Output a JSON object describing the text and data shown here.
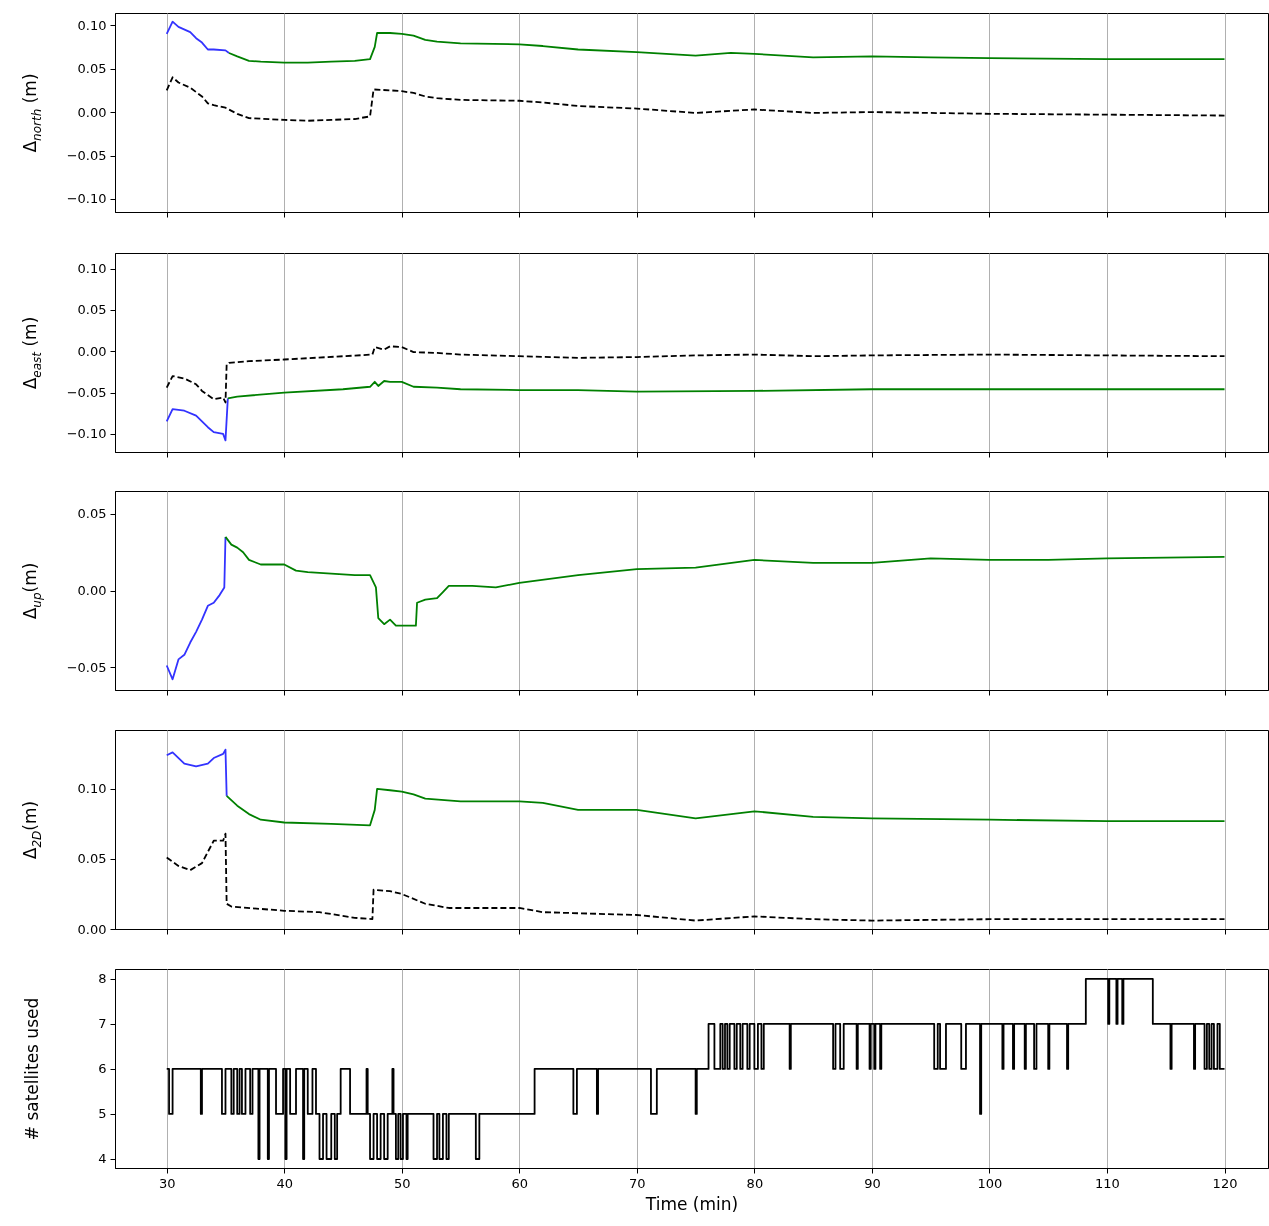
{
  "chart_data": [
    {
      "type": "line",
      "ylabel": "Δ$_{north}$ (m)",
      "xlim": [
        25.6,
        123.7
      ],
      "xticks": [
        30,
        40,
        50,
        60,
        70,
        80,
        90,
        100,
        110,
        120
      ],
      "ylim": [
        -0.115,
        0.114
      ],
      "yticks": [
        {
          "value": -0.1,
          "label": "−0.10"
        },
        {
          "value": -0.05,
          "label": "−0.05"
        },
        {
          "value": 0,
          "label": "0.00"
        },
        {
          "value": 0.05,
          "label": "0.05"
        },
        {
          "value": 0.1,
          "label": "0.10"
        }
      ],
      "grid": "x",
      "tick_labels": "y",
      "series": [
        {
          "color": "#3333ff",
          "x": [
            30,
            30.5,
            31,
            32,
            32.5,
            33,
            33.5,
            34,
            35,
            35.3
          ],
          "values": [
            0.09,
            0.104,
            0.098,
            0.092,
            0.085,
            0.08,
            0.072,
            0.072,
            0.071,
            0.068
          ]
        },
        {
          "color": "#008000",
          "x": [
            35.3,
            36,
            37,
            38,
            40,
            42,
            44,
            46,
            47.3,
            47.7,
            47.9,
            49,
            50,
            51,
            52,
            53,
            55,
            60,
            62,
            65,
            70,
            75,
            78,
            80,
            85,
            90,
            95,
            100,
            110,
            120
          ],
          "values": [
            0.068,
            0.064,
            0.059,
            0.058,
            0.057,
            0.057,
            0.058,
            0.059,
            0.061,
            0.075,
            0.091,
            0.091,
            0.09,
            0.088,
            0.083,
            0.081,
            0.079,
            0.078,
            0.076,
            0.072,
            0.069,
            0.065,
            0.068,
            0.067,
            0.063,
            0.064,
            0.063,
            0.062,
            0.061,
            0.061
          ]
        },
        {
          "color": "#000000",
          "line_style": "dashed",
          "x": [
            30,
            30.5,
            31,
            32,
            33,
            33.5,
            34,
            35,
            36,
            37,
            40,
            42,
            44,
            46,
            47.3,
            47.6,
            49,
            50,
            51,
            52,
            53,
            55,
            60,
            62,
            65,
            70,
            75,
            80,
            85,
            90,
            100,
            110,
            120
          ],
          "values": [
            0.025,
            0.04,
            0.034,
            0.028,
            0.018,
            0.01,
            0.008,
            0.005,
            -0.002,
            -0.007,
            -0.009,
            -0.01,
            -0.009,
            -0.008,
            -0.005,
            0.026,
            0.025,
            0.024,
            0.022,
            0.018,
            0.016,
            0.014,
            0.013,
            0.011,
            0.007,
            0.004,
            -0.001,
            0.003,
            -0.001,
            0,
            -0.002,
            -0.003,
            -0.004
          ]
        }
      ]
    },
    {
      "type": "line",
      "ylabel": "Δ$_{east}$ (m)",
      "xlim": [
        25.6,
        123.7
      ],
      "xticks": [
        30,
        40,
        50,
        60,
        70,
        80,
        90,
        100,
        110,
        120
      ],
      "ylim": [
        -0.122,
        0.119
      ],
      "yticks": [
        {
          "value": -0.1,
          "label": "−0.10"
        },
        {
          "value": -0.05,
          "label": "−0.05"
        },
        {
          "value": 0,
          "label": "0.00"
        },
        {
          "value": 0.05,
          "label": "0.05"
        },
        {
          "value": 0.1,
          "label": "0.10"
        }
      ],
      "grid": "x",
      "tick_labels": "y",
      "series": [
        {
          "color": "#3333ff",
          "x": [
            30,
            30.5,
            31.5,
            32.5,
            33,
            33.5,
            34,
            34.8,
            35,
            35.2
          ],
          "values": [
            -0.085,
            -0.07,
            -0.072,
            -0.078,
            -0.085,
            -0.092,
            -0.098,
            -0.1,
            -0.108,
            -0.057
          ]
        },
        {
          "color": "#008000",
          "x": [
            35.2,
            36,
            40,
            45,
            47.3,
            47.7,
            48,
            48.5,
            49,
            50,
            51,
            53,
            55,
            60,
            65,
            70,
            80,
            90,
            100,
            110,
            120
          ],
          "values": [
            -0.057,
            -0.055,
            -0.05,
            -0.046,
            -0.043,
            -0.037,
            -0.042,
            -0.036,
            -0.037,
            -0.037,
            -0.043,
            -0.044,
            -0.046,
            -0.047,
            -0.047,
            -0.049,
            -0.048,
            -0.046,
            -0.046,
            -0.046,
            -0.046
          ]
        },
        {
          "color": "#000000",
          "line_style": "dashed",
          "x": [
            30,
            30.5,
            31.5,
            32.5,
            33,
            34,
            34.8,
            35,
            35.1,
            35.3,
            37,
            40,
            45,
            47.5,
            47.7,
            48.5,
            49,
            50,
            51,
            53,
            55,
            60,
            65,
            70,
            75,
            80,
            85,
            90,
            100,
            110,
            120
          ],
          "values": [
            -0.044,
            -0.03,
            -0.033,
            -0.04,
            -0.048,
            -0.058,
            -0.056,
            -0.062,
            -0.016,
            -0.014,
            -0.012,
            -0.01,
            -0.006,
            -0.004,
            0.005,
            0.002,
            0.006,
            0.005,
            -0.001,
            -0.002,
            -0.004,
            -0.006,
            -0.008,
            -0.007,
            -0.005,
            -0.004,
            -0.006,
            -0.005,
            -0.004,
            -0.005,
            -0.006
          ]
        }
      ]
    },
    {
      "type": "line",
      "ylabel": "Δ$_{up}$(m)",
      "xlim": [
        25.6,
        123.7
      ],
      "xticks": [
        30,
        40,
        50,
        60,
        70,
        80,
        90,
        100,
        110,
        120
      ],
      "ylim": [
        -0.065,
        0.065
      ],
      "yticks": [
        {
          "value": -0.05,
          "label": "−0.05"
        },
        {
          "value": 0,
          "label": "0.00"
        },
        {
          "value": 0.05,
          "label": "0.05"
        }
      ],
      "grid": "x",
      "tick_labels": "y",
      "series": [
        {
          "color": "#3333ff",
          "x": [
            30,
            30.5,
            31,
            31.5,
            32,
            32.5,
            33,
            33.5,
            34,
            34.5,
            34.9,
            35
          ],
          "values": [
            -0.049,
            -0.058,
            -0.045,
            -0.042,
            -0.034,
            -0.027,
            -0.019,
            -0.01,
            -0.008,
            -0.003,
            0.002,
            0.035
          ]
        },
        {
          "color": "#008000",
          "x": [
            35,
            35.5,
            36,
            36.5,
            37,
            38,
            40,
            41,
            42,
            44,
            46,
            47.3,
            47.8,
            48,
            48.5,
            49,
            49.5,
            50,
            51.2,
            51.3,
            52,
            53,
            53.5,
            54,
            56,
            58,
            60,
            65,
            70,
            75,
            80,
            85,
            90,
            95,
            100,
            105,
            110,
            120
          ],
          "values": [
            0.035,
            0.03,
            0.028,
            0.025,
            0.02,
            0.017,
            0.017,
            0.013,
            0.012,
            0.011,
            0.01,
            0.01,
            0.002,
            -0.018,
            -0.022,
            -0.019,
            -0.023,
            -0.023,
            -0.023,
            -0.008,
            -0.006,
            -0.005,
            -0.001,
            0.003,
            0.003,
            0.002,
            0.005,
            0.01,
            0.014,
            0.015,
            0.02,
            0.018,
            0.018,
            0.021,
            0.02,
            0.02,
            0.021,
            0.022
          ]
        }
      ]
    },
    {
      "type": "line",
      "ylabel": "Δ$_{2D}$(m)",
      "xlim": [
        25.6,
        123.7
      ],
      "xticks": [
        30,
        40,
        50,
        60,
        70,
        80,
        90,
        100,
        110,
        120
      ],
      "ylim": [
        0,
        0.142
      ],
      "yticks": [
        {
          "value": 0,
          "label": "0.00"
        },
        {
          "value": 0.05,
          "label": "0.05"
        },
        {
          "value": 0.1,
          "label": "0.10"
        }
      ],
      "grid": "x",
      "tick_labels": "y",
      "series": [
        {
          "color": "#3333ff",
          "x": [
            30,
            30.5,
            31.5,
            32.5,
            33.5,
            34,
            34.8,
            35,
            35.1
          ],
          "values": [
            0.124,
            0.126,
            0.118,
            0.116,
            0.118,
            0.122,
            0.125,
            0.128,
            0.095
          ]
        },
        {
          "color": "#008000",
          "x": [
            35.1,
            36,
            37,
            38,
            40,
            44,
            47.3,
            47.7,
            47.9,
            49,
            50,
            51,
            52,
            55,
            60,
            62,
            65,
            70,
            75,
            80,
            85,
            90,
            100,
            110,
            120
          ],
          "values": [
            0.095,
            0.088,
            0.082,
            0.078,
            0.076,
            0.075,
            0.074,
            0.085,
            0.1,
            0.099,
            0.098,
            0.096,
            0.093,
            0.091,
            0.091,
            0.09,
            0.085,
            0.085,
            0.079,
            0.084,
            0.08,
            0.079,
            0.078,
            0.077,
            0.077
          ]
        },
        {
          "color": "#000000",
          "line_style": "dashed",
          "x": [
            30,
            31,
            32,
            33,
            33.5,
            34,
            34.8,
            35,
            35.1,
            35.5,
            40,
            43,
            46,
            47.5,
            47.6,
            49,
            50,
            52,
            54,
            60,
            62,
            70,
            75,
            80,
            85,
            90,
            100,
            110,
            120
          ],
          "values": [
            0.051,
            0.045,
            0.042,
            0.047,
            0.055,
            0.063,
            0.063,
            0.068,
            0.018,
            0.016,
            0.013,
            0.012,
            0.008,
            0.007,
            0.028,
            0.027,
            0.025,
            0.018,
            0.015,
            0.015,
            0.012,
            0.01,
            0.006,
            0.009,
            0.007,
            0.006,
            0.007,
            0.007,
            0.007
          ]
        }
      ]
    },
    {
      "type": "step",
      "ylabel": "# satellites used",
      "xlabel": "Time (min)",
      "xlim": [
        25.6,
        123.7
      ],
      "xticks": [
        30,
        40,
        50,
        60,
        70,
        80,
        90,
        100,
        110,
        120
      ],
      "ylim": [
        3.8,
        8.22
      ],
      "yticks": [
        4,
        5,
        6,
        7,
        8
      ],
      "grid": "x",
      "series": [
        {
          "color": "#000000",
          "x": [
            30,
            30.2,
            30.5,
            32.9,
            33.0,
            34.7,
            35.0,
            35.5,
            35.7,
            36.0,
            36.2,
            36.4,
            36.7,
            37.1,
            37.3,
            37.8,
            37.9,
            38.6,
            38.7,
            39.3,
            39.9,
            40.1,
            40.2,
            40.5,
            41.0,
            41.6,
            41.7,
            42.0,
            42.4,
            42.7,
            43.0,
            43.3,
            43.6,
            44.0,
            44.3,
            44.5,
            44.8,
            45.6,
            47.0,
            47.1,
            47.3,
            47.6,
            47.9,
            48.2,
            48.5,
            48.8,
            49.2,
            49.3,
            49.5,
            49.7,
            49.9,
            50.1,
            50.4,
            50.5,
            52.7,
            53.0,
            53.2,
            53.5,
            53.8,
            54.0,
            56.3,
            56.6,
            61.3,
            64.6,
            64.9,
            66.6,
            66.7,
            71.2,
            71.7,
            75.0,
            75.1,
            76.1,
            76.6,
            77.1,
            77.3,
            77.5,
            77.7,
            77.9,
            78.3,
            78.5,
            78.8,
            79.0,
            79.4,
            79.6,
            80.0,
            80.3,
            80.6,
            80.8,
            83.0,
            83.1,
            86.7,
            86.9,
            87.3,
            87.6,
            88.7,
            88.8,
            89.8,
            89.9,
            90.2,
            90.3,
            90.7,
            90.8,
            95.3,
            95.6,
            95.8,
            96.3,
            97.6,
            98.0,
            99.2,
            99.3,
            101.1,
            101.2,
            102.0,
            102.1,
            103.0,
            103.1,
            103.8,
            104.0,
            105.0,
            105.1,
            106.6,
            106.7,
            108.2,
            110.1,
            110.2,
            110.8,
            110.9,
            111.3,
            111.4,
            113.9,
            115.4,
            115.5,
            117.4,
            117.5,
            118.3,
            118.5,
            118.7,
            118.9,
            119.1,
            119.4,
            119.6,
            120
          ],
          "values": [
            6,
            5,
            6,
            5,
            6,
            5,
            6,
            5,
            6,
            5,
            6,
            5,
            6,
            5,
            6,
            4,
            6,
            4,
            6,
            5,
            6,
            4,
            6,
            5,
            6,
            4,
            6,
            5,
            6,
            5,
            4,
            5,
            4,
            5,
            4,
            5,
            6,
            5,
            6,
            5,
            4,
            5,
            4,
            5,
            4,
            5,
            6,
            5,
            4,
            5,
            4,
            5,
            4,
            5,
            4,
            5,
            4,
            5,
            4,
            5,
            4,
            5,
            6,
            5,
            6,
            5,
            6,
            5,
            6,
            5,
            6,
            7,
            6,
            7,
            6,
            7,
            6,
            7,
            6,
            7,
            6,
            7,
            6,
            7,
            6,
            7,
            6,
            7,
            6,
            7,
            6,
            7,
            6,
            7,
            6,
            7,
            6,
            7,
            6,
            7,
            6,
            7,
            6,
            7,
            6,
            7,
            6,
            7,
            5,
            7,
            6,
            7,
            6,
            7,
            6,
            7,
            6,
            7,
            6,
            7,
            6,
            7,
            8,
            7,
            8,
            7,
            8,
            7,
            8,
            7,
            6,
            7,
            6,
            7,
            6,
            7,
            6,
            7,
            6,
            7,
            6,
            6
          ]
        }
      ]
    }
  ]
}
